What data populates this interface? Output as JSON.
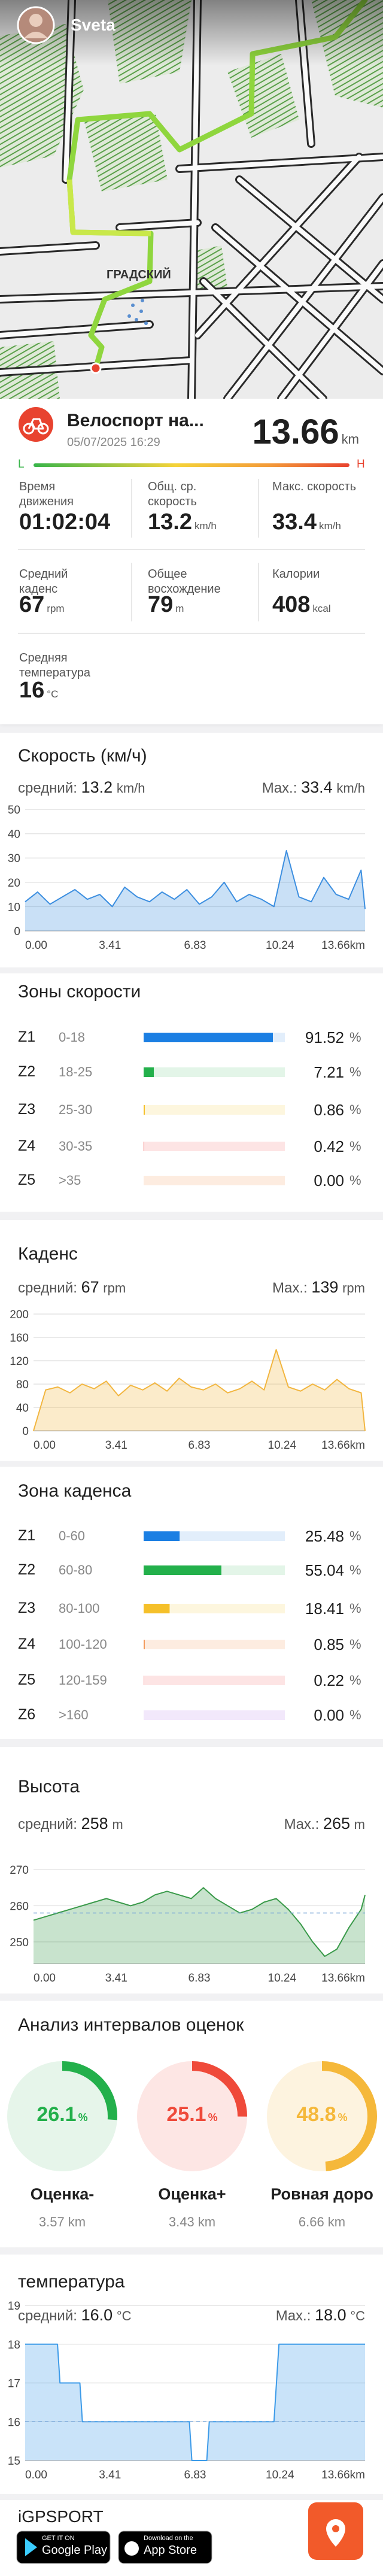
{
  "map": {
    "user": "Sveta",
    "place": "ГРАДСКИЙ",
    "low": "L",
    "high": "H"
  },
  "activity": {
    "title": "Велоспорт на...",
    "date": "05/07/2025 16:29",
    "distance": "13.66",
    "unit": "km"
  },
  "stats": [
    {
      "label": "Время движения",
      "value": "01:02:04"
    },
    {
      "label": "Общ. ср. скорость",
      "value": "13.2",
      "unit": "km/h"
    },
    {
      "label": "Макс. скорость",
      "value": "33.4",
      "unit": "km/h"
    },
    {
      "label": "Средний каденс",
      "value": "67",
      "unit": "rpm"
    },
    {
      "label": "Общее восхождение",
      "value": "79",
      "unit": "m"
    },
    {
      "label": "Калории",
      "value": "408",
      "unit": "kcal"
    },
    {
      "label": "Средняя температура",
      "value": "16",
      "unit": "°C"
    }
  ],
  "speed": {
    "title": "Скорость (км/ч)",
    "avg_label": "средний:",
    "avg": "13.2",
    "avg_unit": "km/h",
    "max_label": "Max.:",
    "max": "33.4",
    "max_unit": "km/h"
  },
  "speed_zones": {
    "title": "Зоны скорости",
    "percent_sign": "%",
    "rows": [
      {
        "zone": "Z1",
        "range": "0-18",
        "value": 91.52,
        "value_label": "91.52",
        "color": "#1b7fe3",
        "track": "#e2eefb"
      },
      {
        "zone": "Z2",
        "range": "18-25",
        "value": 7.21,
        "value_label": "7.21",
        "color": "#23b04b",
        "track": "#e3f5e8"
      },
      {
        "zone": "Z3",
        "range": "25-30",
        "value": 0.86,
        "value_label": "0.86",
        "color": "#f5c02a",
        "track": "#fdf6de"
      },
      {
        "zone": "Z4",
        "range": "30-35",
        "value": 0.42,
        "value_label": "0.42",
        "color": "#ef5350",
        "track": "#fde4e4"
      },
      {
        "zone": "Z5",
        "range": ">35",
        "value": 0.0,
        "value_label": "0.00",
        "color": "#f39a5c",
        "track": "#fdece0"
      }
    ]
  },
  "cadence": {
    "title": "Каденс",
    "avg_label": "средний:",
    "avg": "67",
    "avg_unit": "rpm",
    "max_label": "Max.:",
    "max": "139",
    "max_unit": "rpm"
  },
  "cadence_zones": {
    "title": "Зона каденса",
    "percent_sign": "%",
    "rows": [
      {
        "zone": "Z1",
        "range": "0-60",
        "value": 25.48,
        "value_label": "25.48",
        "color": "#1b7fe3",
        "track": "#e2eefb"
      },
      {
        "zone": "Z2",
        "range": "60-80",
        "value": 55.04,
        "value_label": "55.04",
        "color": "#23b04b",
        "track": "#e3f5e8"
      },
      {
        "zone": "Z3",
        "range": "80-100",
        "value": 18.41,
        "value_label": "18.41",
        "color": "#f5c02a",
        "track": "#fdf6de"
      },
      {
        "zone": "Z4",
        "range": "100-120",
        "value": 0.85,
        "value_label": "0.85",
        "color": "#f39a5c",
        "track": "#fdece0"
      },
      {
        "zone": "Z5",
        "range": "120-159",
        "value": 0.22,
        "value_label": "0.22",
        "color": "#ef5350",
        "track": "#fde4e4"
      },
      {
        "zone": "Z6",
        "range": ">160",
        "value": 0.0,
        "value_label": "0.00",
        "color": "#b57be0",
        "track": "#f2e8fb"
      }
    ]
  },
  "altitude": {
    "title": "Высота",
    "avg_label": "средний:",
    "avg": "258",
    "avg_unit": "m",
    "max_label": "Max.:",
    "max": "265",
    "max_unit": "m"
  },
  "analysis": {
    "title": "Анализ интервалов оценок",
    "percent_sign": "%",
    "items": [
      {
        "value": 26.1,
        "label": "Оценка-",
        "distance": "3.57 km",
        "color": "#23b04b",
        "track": "#e6f5ea"
      },
      {
        "value": 25.1,
        "label": "Оценка+",
        "distance": "3.43 km",
        "color": "#ef4a3a",
        "track": "#fde6e4"
      },
      {
        "value": 48.8,
        "label": "Ровная доро",
        "distance": "6.66 km",
        "color": "#f5b83a",
        "track": "#fdf3df"
      }
    ]
  },
  "temperature": {
    "title": "температура",
    "avg_label": "средний:",
    "avg": "16.0",
    "avg_unit": "°C",
    "max_label": "Max.:",
    "max": "18.0",
    "max_unit": "°C"
  },
  "footer": {
    "brand": "iGPSPORT",
    "google_top": "GET IT ON",
    "google": "Google Play",
    "apple_top": "Download on the",
    "apple": "App Store"
  },
  "chart_data": [
    {
      "type": "line",
      "area": true,
      "color": "#3d8fe0",
      "grid": true,
      "x": [
        0,
        0.5,
        1,
        1.5,
        2,
        2.5,
        3,
        3.5,
        4,
        4.5,
        5,
        5.5,
        6,
        6.5,
        7,
        7.5,
        8,
        8.5,
        9,
        9.5,
        10,
        10.5,
        11,
        11.5,
        12,
        12.5,
        13,
        13.5,
        13.66
      ],
      "values": [
        12,
        16,
        11,
        14,
        17,
        13,
        15,
        10,
        18,
        14,
        12,
        16,
        13,
        17,
        11,
        14,
        20,
        12,
        15,
        13,
        10,
        33,
        14,
        12,
        22,
        15,
        13,
        25,
        9
      ],
      "xlim": [
        0,
        13.66
      ],
      "xticks": [
        {
          "value": 0,
          "label": "0.00"
        },
        3.41,
        6.83,
        10.24,
        {
          "value": 13.66,
          "label": "13.66km"
        }
      ],
      "ylim": [
        0,
        50
      ],
      "yticks": [
        0,
        10,
        20,
        30,
        40,
        50
      ]
    },
    {
      "type": "line",
      "area": true,
      "color": "#f2b640",
      "grid": true,
      "x": [
        0,
        0.5,
        1,
        1.5,
        2,
        2.5,
        3,
        3.5,
        4,
        4.5,
        5,
        5.5,
        6,
        6.5,
        7,
        7.5,
        8,
        8.5,
        9,
        9.5,
        10,
        10.5,
        11,
        11.5,
        12,
        12.5,
        13,
        13.5,
        13.66
      ],
      "values": [
        0,
        70,
        75,
        65,
        80,
        72,
        85,
        60,
        78,
        70,
        82,
        68,
        90,
        75,
        70,
        80,
        65,
        72,
        85,
        70,
        139,
        75,
        68,
        80,
        70,
        88,
        72,
        65,
        0
      ],
      "xlim": [
        0,
        13.66
      ],
      "xticks": [
        {
          "value": 0,
          "label": "0.00"
        },
        3.41,
        6.83,
        10.24,
        {
          "value": 13.66,
          "label": "13.66km"
        }
      ],
      "ylim": [
        0,
        200
      ],
      "yticks": [
        0,
        40,
        80,
        120,
        160,
        200
      ]
    },
    {
      "type": "line",
      "area": true,
      "color": "#3a9a4a",
      "grid": true,
      "reference_line": 258,
      "x": [
        0,
        0.5,
        1,
        1.5,
        2,
        2.5,
        3,
        3.5,
        4,
        4.5,
        5,
        5.5,
        6,
        6.5,
        7,
        7.5,
        8,
        8.5,
        9,
        9.5,
        10,
        10.5,
        11,
        11.5,
        12,
        12.5,
        13,
        13.5,
        13.66
      ],
      "values": [
        256,
        257,
        258,
        259,
        260,
        261,
        262,
        261,
        260,
        261,
        263,
        264,
        263,
        262,
        265,
        262,
        260,
        258,
        259,
        261,
        262,
        259,
        255,
        250,
        246,
        248,
        254,
        259,
        263
      ],
      "xlim": [
        0,
        13.66
      ],
      "xticks": [
        {
          "value": 0,
          "label": "0.00"
        },
        3.41,
        6.83,
        10.24,
        {
          "value": 13.66,
          "label": "13.66km"
        }
      ],
      "ylim": [
        244,
        272
      ],
      "yticks": [
        250,
        260,
        270
      ]
    },
    {
      "type": "line",
      "area": true,
      "color": "#3d9be9",
      "grid": true,
      "reference_line": 16,
      "x": [
        0,
        1.3,
        1.4,
        2.2,
        2.3,
        6.6,
        6.7,
        7.3,
        7.4,
        10.0,
        10.2,
        13.66
      ],
      "values": [
        18,
        18,
        17,
        17,
        16,
        16,
        15,
        15,
        16,
        16,
        18,
        18
      ],
      "xlim": [
        0,
        13.66
      ],
      "xticks": [
        {
          "value": 0,
          "label": "0.00"
        },
        3.41,
        6.83,
        10.24,
        {
          "value": 13.66,
          "label": "13.66km"
        }
      ],
      "ylim": [
        15,
        19
      ],
      "yticks": [
        15,
        16,
        17,
        18,
        19
      ]
    }
  ]
}
